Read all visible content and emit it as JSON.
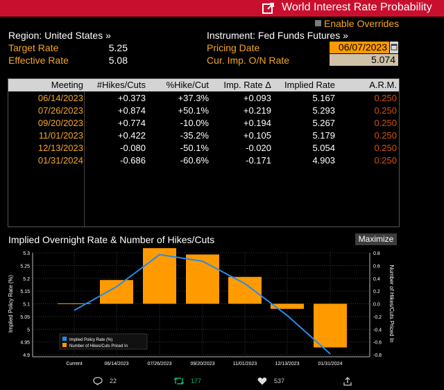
{
  "header": {
    "title": "World Interest Rate Probability",
    "enable_overrides_label": "Enable Overrides"
  },
  "info": {
    "region_label": "Region: United States »",
    "instrument_label": "Instrument: Fed Funds Futures »",
    "target_rate_label": "Target Rate",
    "target_rate_value": "5.25",
    "effective_rate_label": "Effective Rate",
    "effective_rate_value": "5.08",
    "pricing_date_label": "Pricing Date",
    "pricing_date_value": "06/07/2023",
    "onr_label": "Cur. Imp. O/N Rate",
    "onr_value": "5.074"
  },
  "table": {
    "columns": [
      "Meeting",
      "#Hikes/Cuts",
      "%Hike/Cut",
      "Imp. Rate Δ",
      "Implied Rate",
      "A.R.M."
    ],
    "rows": [
      {
        "meeting": "06/14/2023",
        "hikes": "+0.373",
        "pct": "+37.3%",
        "delta": "+0.093",
        "implied": "5.167",
        "arm": "0.250"
      },
      {
        "meeting": "07/26/2023",
        "hikes": "+0.874",
        "pct": "+50.1%",
        "delta": "+0.219",
        "implied": "5.293",
        "arm": "0.250"
      },
      {
        "meeting": "09/20/2023",
        "hikes": "+0.774",
        "pct": "-10.0%",
        "delta": "+0.194",
        "implied": "5.267",
        "arm": "0.250"
      },
      {
        "meeting": "11/01/2023",
        "hikes": "+0.422",
        "pct": "-35.2%",
        "delta": "+0.105",
        "implied": "5.179",
        "arm": "0.250"
      },
      {
        "meeting": "12/13/2023",
        "hikes": "-0.080",
        "pct": "-50.1%",
        "delta": "-0.020",
        "implied": "5.054",
        "arm": "0.250"
      },
      {
        "meeting": "01/31/2024",
        "hikes": "-0.686",
        "pct": "-60.6%",
        "delta": "-0.171",
        "implied": "4.903",
        "arm": "0.250"
      }
    ]
  },
  "chart_panel": {
    "title": "Implied Overnight Rate & Number of Hikes/Cuts",
    "maximize_label": "Maximize"
  },
  "chart_data": {
    "type": "bar",
    "categories": [
      "Current",
      "06/14/2023",
      "07/26/2023",
      "09/20/2023",
      "11/01/2023",
      "12/13/2023",
      "01/31/2024"
    ],
    "series": [
      {
        "name": "Implied Policy Rate (%)",
        "type": "line",
        "axis": "left",
        "color": "#1f8ef1",
        "values": [
          5.074,
          5.167,
          5.293,
          5.267,
          5.179,
          5.054,
          4.903
        ]
      },
      {
        "name": "Number of Hikes/Cuts Priced In",
        "type": "bar",
        "axis": "right",
        "color": "#ff9a00",
        "values": [
          0.0,
          0.373,
          0.874,
          0.774,
          0.422,
          -0.08,
          -0.686
        ]
      }
    ],
    "ylabel": "Implied Policy Rate (%)",
    "ylabel_right": "Number of Hikes/Cuts Priced In",
    "ylim": [
      4.9,
      5.3
    ],
    "ylim_right": [
      -0.8,
      0.8
    ],
    "yticks": [
      "5.3",
      "5.25",
      "5.2",
      "5.15",
      "5.1",
      "5.05",
      "5",
      "4.95",
      "4.9"
    ],
    "yticks_right": [
      "0.8",
      "0.6",
      "0.4",
      "0.2",
      "0.0",
      "-0.2",
      "-0.4",
      "-0.6",
      "-0.8"
    ],
    "grid": true,
    "legend_position": "bottom-left"
  },
  "footer": {
    "replies": "22",
    "retweets": "177",
    "likes": "537"
  },
  "colors": {
    "title_bar": "#c8102e",
    "orange": "#f5a623",
    "bar_orange": "#ff9a00",
    "line_blue": "#1f8ef1",
    "retweet_green": "#00ba7c"
  }
}
